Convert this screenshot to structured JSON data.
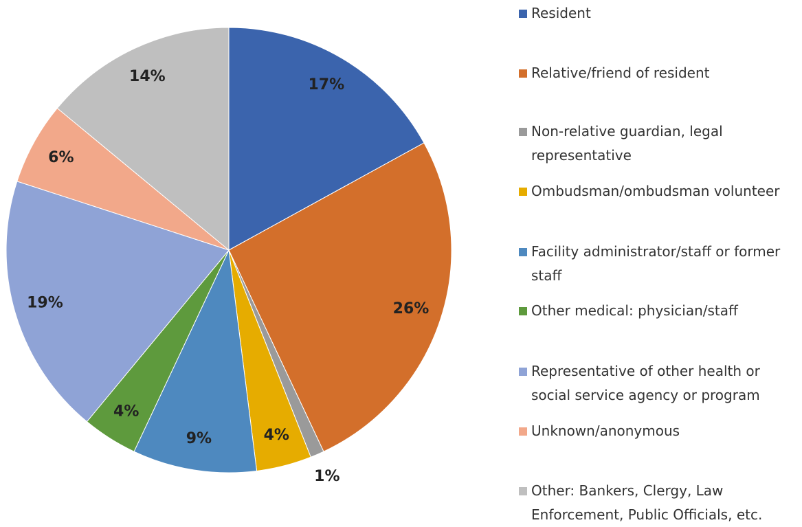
{
  "chart_data": {
    "type": "pie",
    "categories": [
      "Resident",
      "Relative/friend of resident",
      "Non-relative guardian, legal representative",
      "Ombudsman/ombudsman volunteer",
      "Facility administrator/staff or former staff",
      "Other medical: physician/staff",
      "Representative of other health or social service agency or program",
      "Unknown/anonymous",
      "Other: Bankers, Clergy, Law Enforcement, Public Officials, etc."
    ],
    "values": [
      17,
      26,
      1,
      4,
      9,
      4,
      19,
      6,
      14
    ],
    "value_labels": [
      "17%",
      "26%",
      "1%",
      "4%",
      "9%",
      "4%",
      "19%",
      "6%",
      "14%"
    ],
    "colors": [
      "#3b64ad",
      "#d36f2b",
      "#9a9a9a",
      "#e6ac00",
      "#4e89bf",
      "#5e9a3d",
      "#8fa3d6",
      "#f2a88a",
      "#bfbfbf"
    ],
    "legend": "right"
  }
}
